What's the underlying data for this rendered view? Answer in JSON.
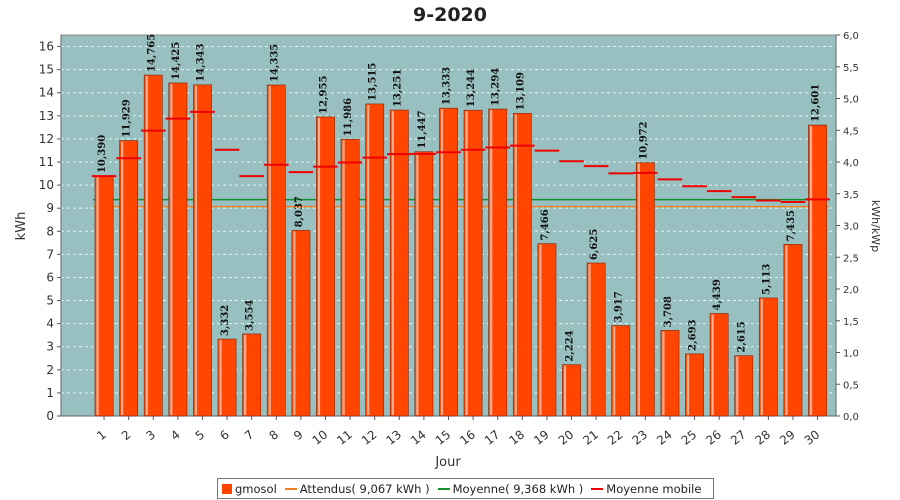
{
  "chart_data": {
    "type": "bar",
    "title": "9-2020",
    "xlabel": "Jour",
    "ylabel": "kWh",
    "ylabel_right": "kWh/kWp",
    "ylim": [
      0,
      16.5
    ],
    "ylim_right": [
      0,
      6.0
    ],
    "yticks": [
      "0",
      "1",
      "2",
      "3",
      "4",
      "5",
      "6",
      "7",
      "8",
      "9",
      "10",
      "11",
      "12",
      "13",
      "14",
      "15",
      "16"
    ],
    "yticks_right": [
      "0,0",
      "0,5",
      "1,0",
      "1,5",
      "2,0",
      "2,5",
      "3,0",
      "3,5",
      "4,0",
      "4,5",
      "5,0",
      "5,5",
      "6,0"
    ],
    "categories": [
      "1",
      "2",
      "3",
      "4",
      "5",
      "6",
      "7",
      "8",
      "9",
      "10",
      "11",
      "12",
      "13",
      "14",
      "15",
      "16",
      "17",
      "18",
      "19",
      "20",
      "21",
      "22",
      "23",
      "24",
      "25",
      "26",
      "27",
      "28",
      "29",
      "30"
    ],
    "series": [
      {
        "name": "gmosol",
        "color": "#ff4500",
        "values": [
          10.39,
          11.929,
          14.765,
          14.425,
          14.343,
          3.332,
          3.554,
          14.335,
          8.037,
          12.955,
          11.986,
          13.515,
          13.251,
          11.447,
          13.333,
          13.244,
          13.294,
          13.109,
          7.466,
          2.224,
          6.625,
          3.917,
          10.972,
          3.708,
          2.693,
          4.439,
          2.615,
          5.113,
          7.435,
          12.601
        ],
        "labels": [
          "10,390",
          "11,929",
          "14,765",
          "14,425",
          "14,343",
          "3,332",
          "3,554",
          "14,335",
          "8,037",
          "12,955",
          "11,986",
          "13,515",
          "13,251",
          "11,447",
          "13,333",
          "13,244",
          "13,294",
          "13,109",
          "7,466",
          "2,224",
          "6,625",
          "3,917",
          "10,972",
          "3,708",
          "2,693",
          "4,439",
          "2,615",
          "5,113",
          "7,435",
          "12,601"
        ]
      },
      {
        "name": "Moyenne mobile",
        "color": "#ee0000",
        "values": [
          10.39,
          11.16,
          12.36,
          12.88,
          13.17,
          11.53,
          10.39,
          10.88,
          10.56,
          10.8,
          10.98,
          11.19,
          11.34,
          11.35,
          11.42,
          11.53,
          11.63,
          11.71,
          11.49,
          11.03,
          10.82,
          10.51,
          10.53,
          10.25,
          9.95,
          9.74,
          9.48,
          9.33,
          9.27,
          9.38
        ]
      }
    ],
    "reference_lines": [
      {
        "name": "Attendus",
        "value": 9.067,
        "color": "#f08020"
      },
      {
        "name": "Moyenne",
        "value": 9.368,
        "color": "#109030"
      }
    ],
    "legend": [
      "gmosol",
      "Attendus( 9,067 kWh )",
      "Moyenne( 9,368 kWh )",
      "Moyenne mobile"
    ],
    "legend_position": "bottom",
    "grid": true,
    "plot_bg": "#99c0c0"
  }
}
